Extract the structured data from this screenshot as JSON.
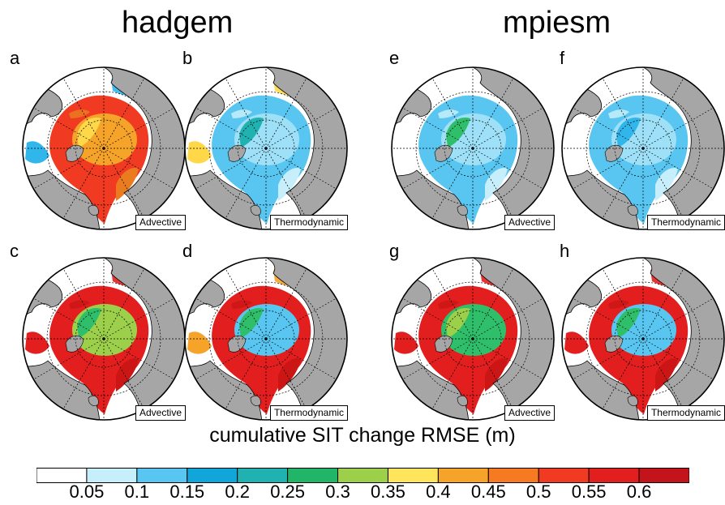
{
  "titles": {
    "left": "hadgem",
    "right": "mpiesm"
  },
  "panels": [
    {
      "letter": "a",
      "label": "Advective",
      "fill": "#f03a22",
      "core": "#f5a329",
      "pack": "#ffd84a",
      "outer": "#ea7b1f",
      "margin": "#31b6ec"
    },
    {
      "letter": "b",
      "label": "Thermodynamic",
      "fill": "#58c6f0",
      "core": "#9ee0f8",
      "pack": "#1fb2b1",
      "outer": "#c7eefb",
      "margin": "#ffd84a"
    },
    {
      "letter": "e",
      "label": "Advective",
      "fill": "#58c6f0",
      "core": "#9ee0f8",
      "pack": "#2fbf6b",
      "outer": "#c7eefb",
      "margin": "#ffffff"
    },
    {
      "letter": "f",
      "label": "Thermodynamic",
      "fill": "#58c6f0",
      "core": "#9ee0f8",
      "pack": "#31b6ec",
      "outer": "#c7eefb",
      "margin": "#ffffff"
    },
    {
      "letter": "c",
      "label": "Advective",
      "fill": "#e31e1e",
      "core": "#9dd04a",
      "pack": "#2fbf6b",
      "outer": "#cc1616",
      "margin": "#e31e1e"
    },
    {
      "letter": "d",
      "label": "Thermodynamic",
      "fill": "#e31e1e",
      "core": "#58c6f0",
      "pack": "#2fbf6b",
      "outer": "#cc1616",
      "margin": "#f5a329"
    },
    {
      "letter": "g",
      "label": "Advective",
      "fill": "#e31e1e",
      "core": "#2fbf6b",
      "pack": "#9dd04a",
      "outer": "#cc1616",
      "margin": "#e31e1e"
    },
    {
      "letter": "h",
      "label": "Thermodynamic",
      "fill": "#e31e1e",
      "core": "#58c6f0",
      "pack": "#2fbf6b",
      "outer": "#cc1616",
      "margin": "#e31e1e"
    }
  ],
  "colorbar": {
    "title": "cumulative SIT change  RMSE (m)",
    "colors": [
      "#ffffff",
      "#c7eefb",
      "#58c6f0",
      "#11a6d9",
      "#1fb2b1",
      "#20b567",
      "#9dd04a",
      "#ffe55b",
      "#f5a329",
      "#f57a22",
      "#f03a22",
      "#e31e1e",
      "#c4141b"
    ],
    "ticks": [
      "0.05",
      "0.1",
      "0.15",
      "0.2",
      "0.25",
      "0.3",
      "0.35",
      "0.4",
      "0.45",
      "0.5",
      "0.55",
      "0.6"
    ]
  },
  "style": {
    "land": "#a6a6a6",
    "ocean": "#ffffff"
  }
}
